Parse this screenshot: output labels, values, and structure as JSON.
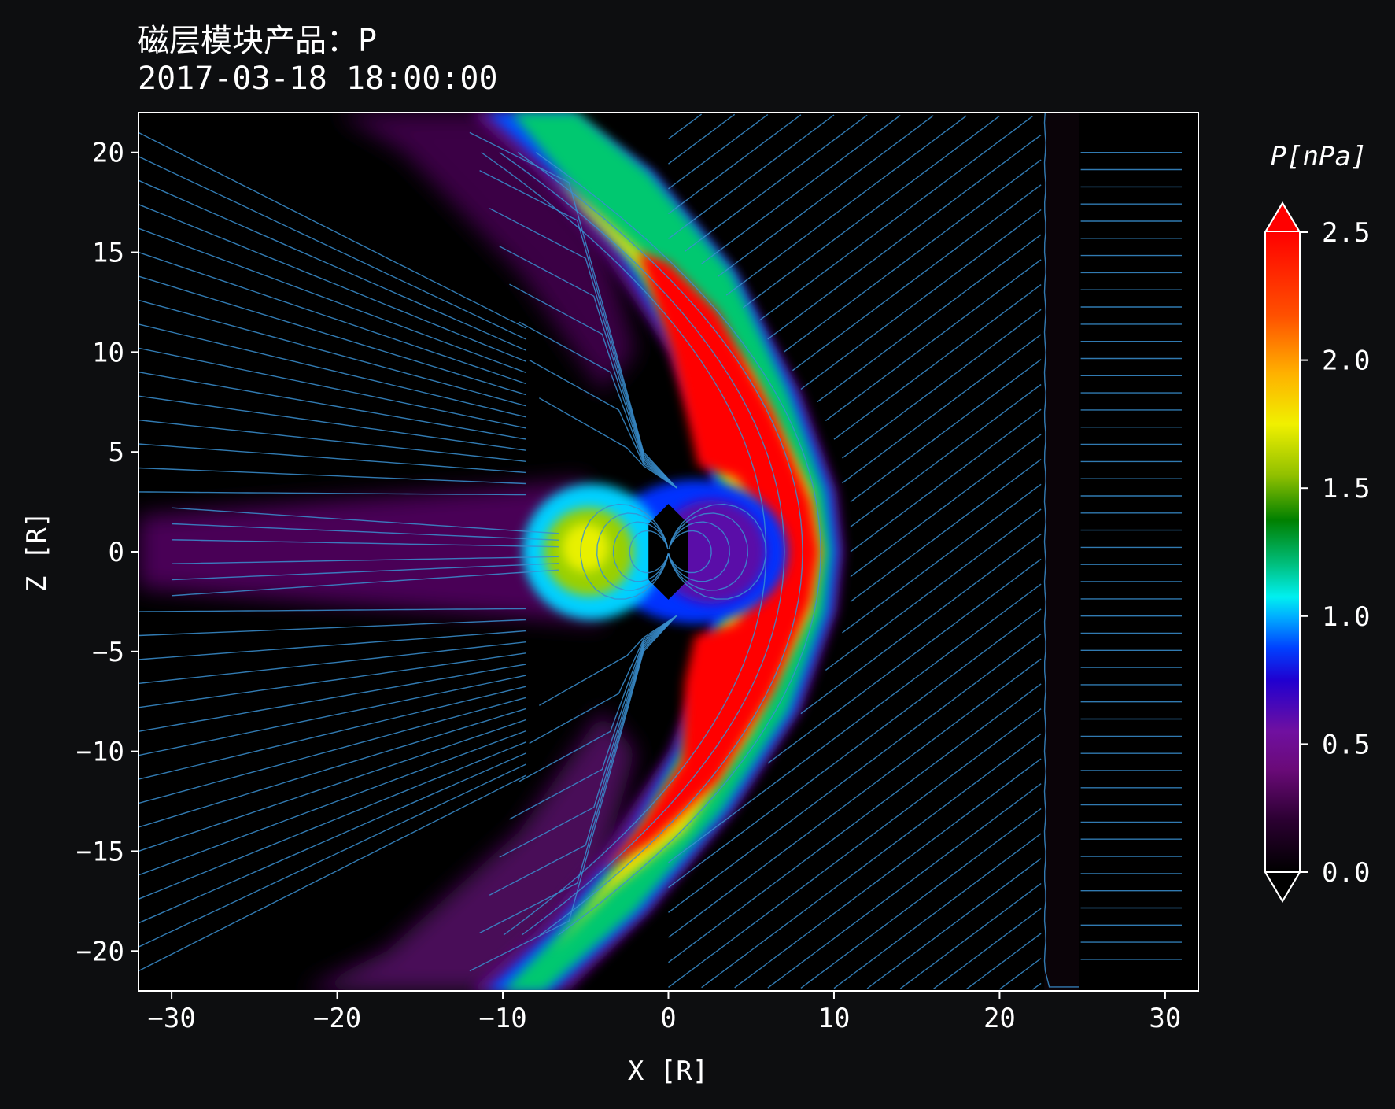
{
  "title": "磁层模块产品：P",
  "subtitle": "2017-03-18 18:00:00",
  "chart_data": {
    "type": "heatmap",
    "title": "磁层模块产品：P",
    "subtitle": "2017-03-18 18:00:00",
    "xlabel": "X [R]",
    "ylabel": "Z [R]",
    "xlim": [
      -32,
      32
    ],
    "ylim": [
      -22,
      22
    ],
    "x_ticks": [
      -30,
      -20,
      -10,
      0,
      10,
      20,
      30
    ],
    "x_tick_labels": [
      "−30",
      "−20",
      "−10",
      "0",
      "10",
      "20",
      "30"
    ],
    "y_ticks": [
      20,
      15,
      10,
      5,
      0,
      -5,
      -10,
      -15,
      -20
    ],
    "y_tick_labels": [
      "20",
      "15",
      "10",
      "5",
      "0",
      "−5",
      "−10",
      "−15",
      "−20"
    ],
    "colorbar": {
      "label": "P[nPa]",
      "range": [
        0.0,
        2.5
      ],
      "extend": "both",
      "ticks": [
        0.0,
        0.5,
        1.0,
        1.5,
        2.0,
        2.5
      ],
      "tick_labels": [
        "0.0",
        "0.5",
        "1.0",
        "1.5",
        "2.0",
        "2.5"
      ]
    },
    "overlay": "magnetic field streamlines",
    "colors": {
      "background": "#0d0e10",
      "streamline": "#3a8fd0",
      "axis": "#ffffff"
    }
  }
}
